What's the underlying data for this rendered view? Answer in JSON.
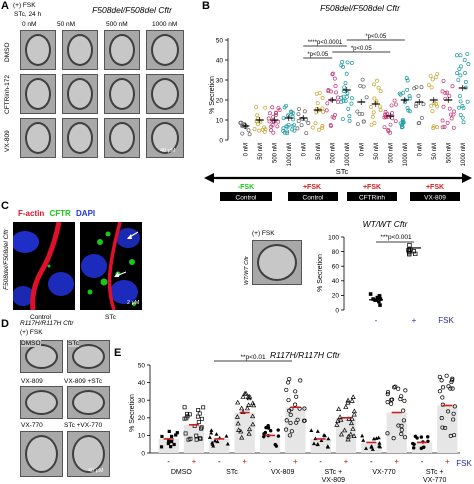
{
  "panelA": {
    "letter": "A",
    "fsk": "(+) FSK",
    "stc": "STc, 24 h",
    "title": "F508del/F508del Cftr",
    "cols": [
      "0 nM",
      "50 nM",
      "500 nM",
      "1000 nM"
    ],
    "rows": [
      "DMSO",
      "CFTRinh-172",
      "VX-809"
    ],
    "scale": "40 μM"
  },
  "panelB": {
    "letter": "B",
    "title": "F508del/F508del Cftr",
    "ylabel": "% Secretion",
    "yticks": [
      "0",
      "10",
      "20",
      "30",
      "40",
      "50"
    ],
    "xcats": [
      "0 nM",
      "50 nM",
      "500 nM",
      "1000 nM",
      "0 nM",
      "50 nM",
      "500 nM",
      "1000 nM",
      "0 nM",
      "50 nM",
      "500 nM",
      "1000 nM",
      "0 nM",
      "50 nM",
      "500 nM",
      "1000 nM"
    ],
    "stats": [
      "****p<0.0001",
      "*p<0.05",
      "*p<0.05",
      "*p<0.05"
    ],
    "stc": "STc",
    "fsk_minus": "-FSK",
    "fsk_plus1": "+FSK",
    "fsk_plus2": "+FSK",
    "fsk_plus3": "+FSK",
    "groups": [
      "Control",
      "Control",
      "CFTRinh",
      "VX-809"
    ]
  },
  "panelC": {
    "letter": "C",
    "legend_factin": "F-actin",
    "legend_cftr": "CFTR",
    "legend_dapi": "DAPI",
    "side": "F508del/F508del Cftr",
    "labels": [
      "Control",
      "STc"
    ],
    "scale": "2 μM"
  },
  "panelWT": {
    "fsk": "(+) FSK",
    "side": "WT/WT Cftr",
    "title": "WT/WT Cftr",
    "stat": "***p<0.001",
    "ylabel": "% Secretion",
    "yticks": [
      "0",
      "20",
      "40",
      "60",
      "80",
      "100"
    ],
    "xneg": "-",
    "xpos": "+",
    "xlabel": "FSK"
  },
  "panelD": {
    "letter": "D",
    "title": "R117H/R117H Cftr",
    "fsk": "(+) FSK",
    "labels": [
      "DMSO",
      "STc",
      "VX-809",
      "VX-809 +STc",
      "VX-770",
      "STc +VX-770"
    ],
    "scale": "40 μM"
  },
  "panelE": {
    "letter": "E",
    "title": "R117H/R117H Cftr",
    "stat": "**p<0.01",
    "ylabel": "% Secretion",
    "yticks": [
      "0",
      "10",
      "20",
      "30",
      "40",
      "50"
    ],
    "xcats": [
      "DMSO",
      "STc",
      "VX-809",
      "STc + VX-809",
      "VX-770",
      "STc + VX-770"
    ],
    "signs": [
      "-",
      "+",
      "-",
      "+",
      "-",
      "+",
      "-",
      "+",
      "-",
      "+",
      "-",
      "+"
    ],
    "xlabel": "FSK"
  },
  "colors": {
    "factin": "#e0102a",
    "cftr": "#18c818",
    "dapi": "#2233dd",
    "red": "#d01c1c",
    "blue": "#2a2ab0",
    "teal": "#1e9aa0"
  },
  "chart_data": [
    {
      "type": "scatter",
      "title": "F508del/F508del Cftr",
      "ylabel": "% Secretion",
      "ylim": [
        0,
        50
      ],
      "categories": [
        "0 nM",
        "50 nM",
        "500 nM",
        "1000 nM",
        "0 nM",
        "50 nM",
        "500 nM",
        "1000 nM",
        "0 nM",
        "50 nM",
        "500 nM",
        "1000 nM",
        "0 nM",
        "50 nM",
        "500 nM",
        "1000 nM"
      ],
      "series": [
        {
          "values": [
            7,
            10,
            10,
            11,
            11,
            15,
            20,
            25,
            19,
            18,
            12,
            20,
            19,
            20,
            20,
            26
          ]
        }
      ]
    },
    {
      "type": "scatter",
      "title": "WT/WT Cftr",
      "ylabel": "% Secretion",
      "ylim": [
        0,
        100
      ],
      "categories": [
        "-",
        "+"
      ],
      "series": [
        {
          "values": [
            14,
            85
          ]
        }
      ]
    },
    {
      "type": "scatter",
      "title": "R117H/R117H Cftr",
      "ylabel": "% Secretion",
      "ylim": [
        0,
        50
      ],
      "categories": [
        "DMSO -",
        "DMSO +",
        "STc -",
        "STc +",
        "VX-809 -",
        "VX-809 +",
        "STc + VX-809 -",
        "STc + VX-809 +",
        "VX-770 -",
        "VX-770 +",
        "STc + VX-770 -",
        "STc + VX-770 +"
      ],
      "series": [
        {
          "values": [
            8,
            16,
            8,
            23,
            10,
            26,
            8,
            20,
            6,
            23,
            6,
            27
          ]
        }
      ]
    }
  ]
}
